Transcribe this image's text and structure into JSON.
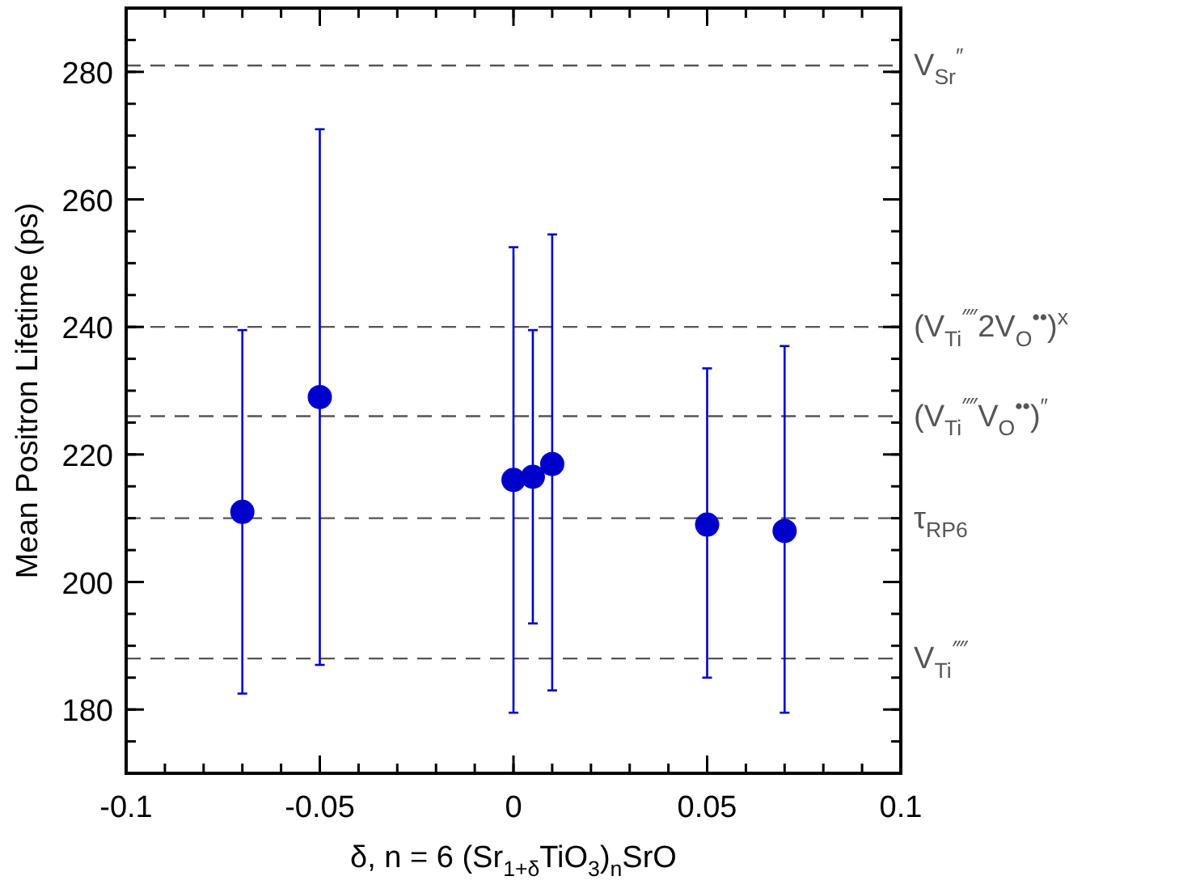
{
  "chart_data": {
    "type": "scatter",
    "xlabel": "δ, n = 6 (Sr$_{1+δ}$TiO$_{3}$)$_{n}$SrO",
    "ylabel": "Mean Positron Lifetime (ps)",
    "x": [
      -0.07,
      -0.05,
      0,
      0.005,
      0.01,
      0.05,
      0.07
    ],
    "series": [
      {
        "color": "#0000cc",
        "values": [
          211,
          229,
          216,
          216.5,
          218.5,
          209,
          208
        ],
        "errors": [
          [
            182.5,
            239.5
          ],
          [
            187,
            271
          ],
          [
            179.5,
            252.5
          ],
          [
            193.5,
            239.5
          ],
          [
            183,
            254.5
          ],
          [
            185,
            233.5
          ],
          [
            179.5,
            237
          ]
        ]
      }
    ],
    "xlim": [
      -0.1,
      0.1
    ],
    "xticks": [
      -0.1,
      -0.05,
      0,
      0.05,
      0.1
    ],
    "ylim": [
      170,
      290
    ],
    "yticks": [
      180,
      200,
      220,
      240,
      260,
      280
    ],
    "marker": "circle",
    "grid": false,
    "ref_lines": [
      {
        "axis": "y",
        "value": 281,
        "label": "V$_{Sr}$$^{″}$",
        "color": "#555555",
        "line_style": "dashed"
      },
      {
        "axis": "y",
        "value": 240,
        "label": "(V$_{Ti}$$^{⁗}$2V$_{O}$$^{••}$)$^{x}$",
        "color": "#555555",
        "line_style": "dashed"
      },
      {
        "axis": "y",
        "value": 226,
        "label": "(V$_{Ti}$$^{⁗}$V$_{O}$$^{••}$)$^{″}$",
        "color": "#555555",
        "line_style": "dashed"
      },
      {
        "axis": "y",
        "value": 210,
        "label": "τ$_{RP6}$",
        "color": "#555555",
        "line_style": "dashed"
      },
      {
        "axis": "y",
        "value": 188,
        "label": "V$_{Ti}$$^{⁗}$",
        "color": "#555555",
        "line_style": "dashed"
      }
    ]
  }
}
